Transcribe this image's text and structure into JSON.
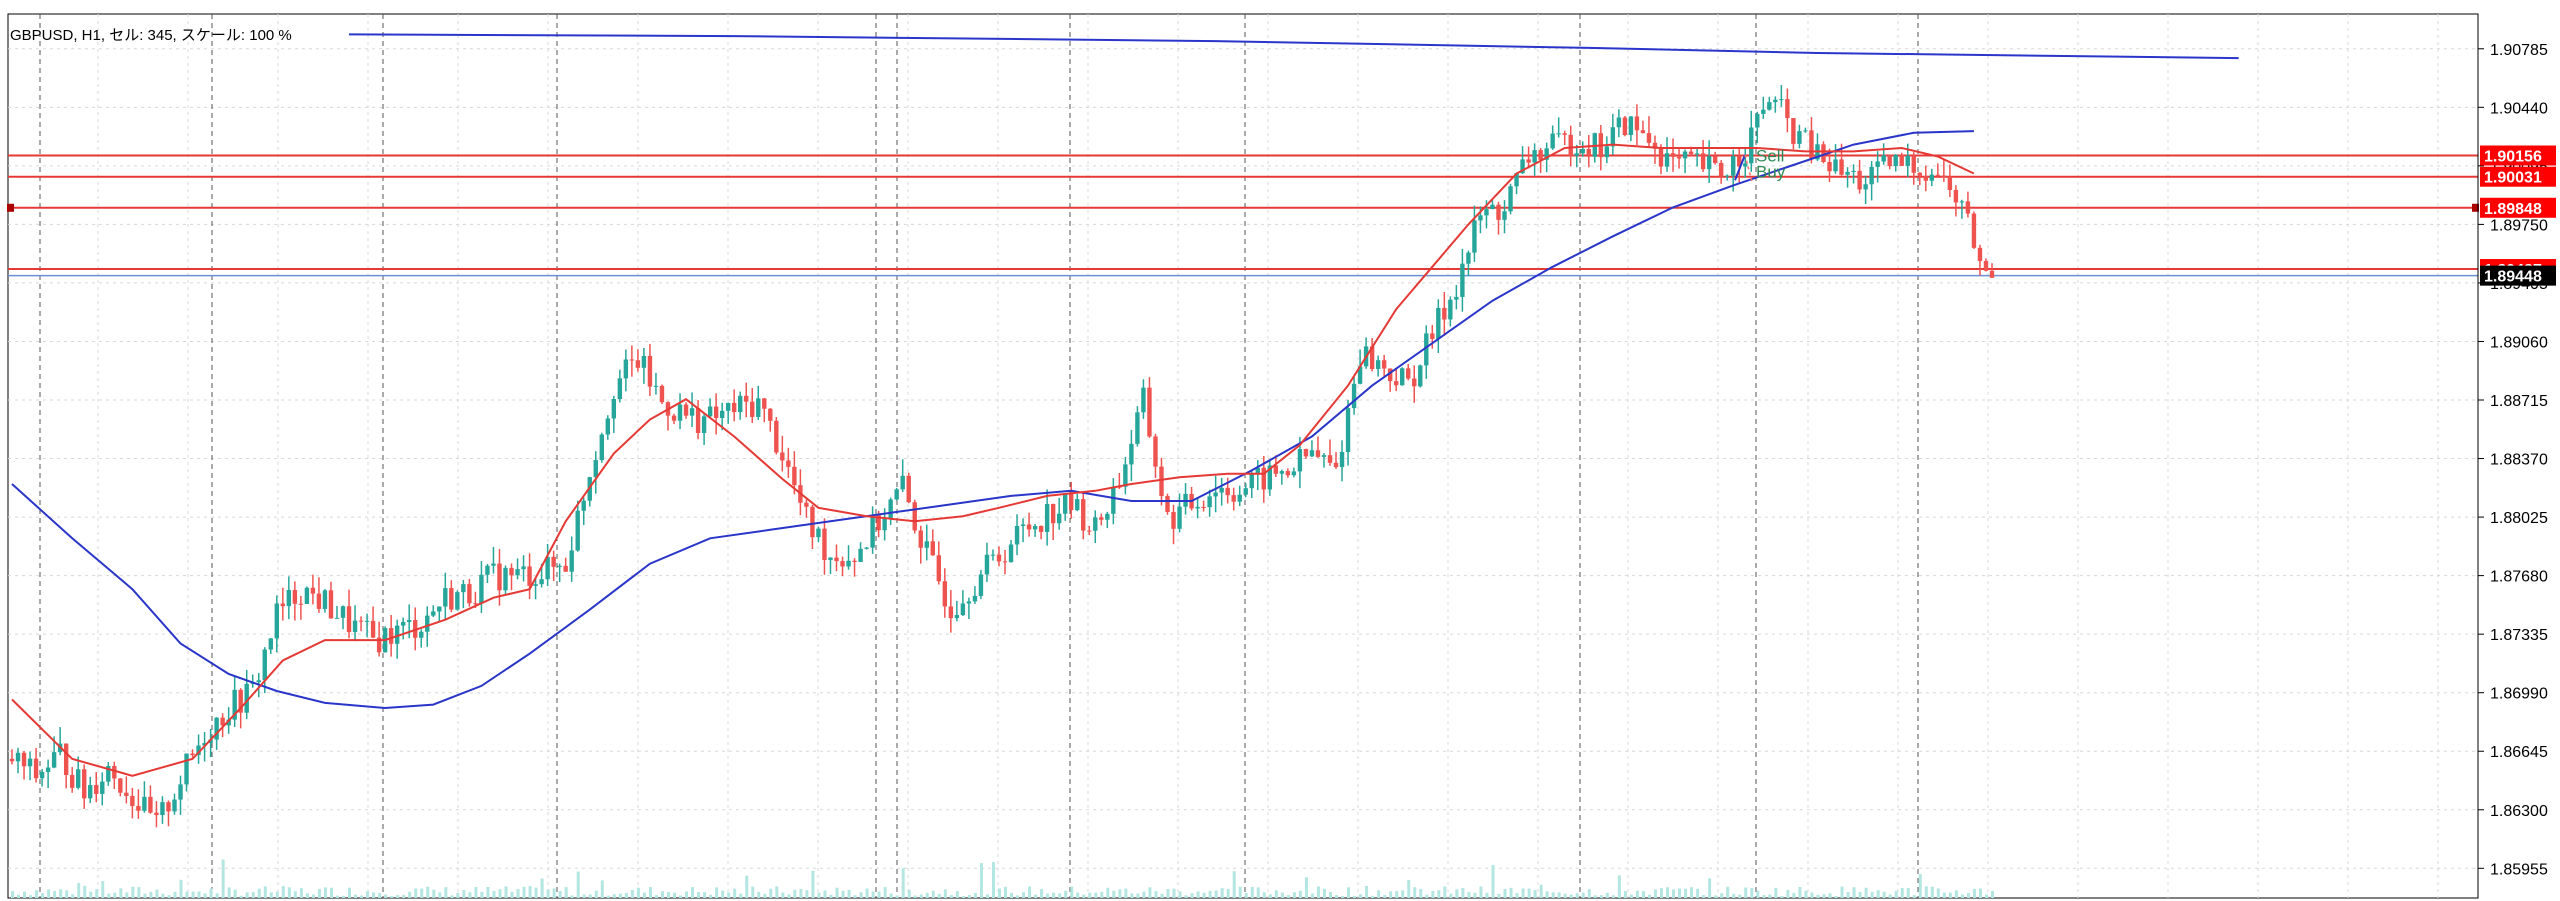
{
  "header": {
    "title": "GBPUSD, H1, セル: 345, スケール: 100 %"
  },
  "colors": {
    "background": "#ffffff",
    "bull_candle": "#26a69a",
    "bear_candle": "#ef5350",
    "ma_fast": "#e53935",
    "ma_slow": "#2a35c9",
    "level_line": "#e53935",
    "bid_line": "#6b8fd6",
    "grid": "#d8d8d8",
    "period_separator": "#555555",
    "volume": "#b3e6e1"
  },
  "chart_data": {
    "type": "candlestick",
    "symbol": "GBPUSD",
    "timeframe": "H1",
    "ylim": [
      1.8578,
      1.9099
    ],
    "y_ticks": [
      "1.90785",
      "1.90440",
      "1.90095",
      "1.89750",
      "1.89405",
      "1.89060",
      "1.88715",
      "1.88370",
      "1.88025",
      "1.87680",
      "1.87335",
      "1.86990",
      "1.86645",
      "1.86300",
      "1.85955"
    ],
    "close_anchors": [
      [
        0,
        1.866
      ],
      [
        4,
        1.865
      ],
      [
        8,
        1.8663
      ],
      [
        12,
        1.864
      ],
      [
        16,
        1.8655
      ],
      [
        20,
        1.8638
      ],
      [
        24,
        1.862
      ],
      [
        28,
        1.8648
      ],
      [
        32,
        1.8675
      ],
      [
        36,
        1.869
      ],
      [
        40,
        1.87
      ],
      [
        44,
        1.8745
      ],
      [
        48,
        1.876
      ],
      [
        52,
        1.8752
      ],
      [
        56,
        1.874
      ],
      [
        60,
        1.873
      ],
      [
        64,
        1.8735
      ],
      [
        68,
        1.874
      ],
      [
        72,
        1.8755
      ],
      [
        76,
        1.8758
      ],
      [
        80,
        1.8768
      ],
      [
        84,
        1.8768
      ],
      [
        88,
        1.877
      ],
      [
        92,
        1.8775
      ],
      [
        96,
        1.883
      ],
      [
        100,
        1.888
      ],
      [
        104,
        1.8895
      ],
      [
        108,
        1.887
      ],
      [
        112,
        1.8862
      ],
      [
        116,
        1.886
      ],
      [
        120,
        1.8866
      ],
      [
        124,
        1.887
      ],
      [
        128,
        1.884
      ],
      [
        132,
        1.88
      ],
      [
        136,
        1.878
      ],
      [
        140,
        1.878
      ],
      [
        144,
        1.88
      ],
      [
        148,
        1.882
      ],
      [
        152,
        1.878
      ],
      [
        156,
        1.875
      ],
      [
        160,
        1.8765
      ],
      [
        164,
        1.878
      ],
      [
        168,
        1.8795
      ],
      [
        172,
        1.8805
      ],
      [
        176,
        1.881
      ],
      [
        180,
        1.8795
      ],
      [
        184,
        1.8825
      ],
      [
        188,
        1.887
      ],
      [
        192,
        1.88
      ],
      [
        196,
        1.881
      ],
      [
        200,
        1.882
      ],
      [
        204,
        1.8818
      ],
      [
        208,
        1.8825
      ],
      [
        212,
        1.883
      ],
      [
        216,
        1.884
      ],
      [
        220,
        1.883
      ],
      [
        224,
        1.89
      ],
      [
        228,
        1.889
      ],
      [
        232,
        1.888
      ],
      [
        236,
        1.891
      ],
      [
        240,
        1.894
      ],
      [
        244,
        1.898
      ],
      [
        248,
        1.8985
      ],
      [
        252,
        1.9015
      ],
      [
        256,
        1.902
      ],
      [
        260,
        1.9025
      ],
      [
        264,
        1.902
      ],
      [
        268,
        1.9035
      ],
      [
        272,
        1.9025
      ],
      [
        276,
        1.901
      ],
      [
        280,
        1.901
      ],
      [
        284,
        1.9005
      ],
      [
        288,
        1.902
      ],
      [
        292,
        1.905
      ],
      [
        296,
        1.903
      ],
      [
        300,
        1.9015
      ],
      [
        304,
        1.9005
      ],
      [
        308,
        1.9
      ],
      [
        312,
        1.901
      ],
      [
        316,
        1.901
      ],
      [
        320,
        1.9005
      ],
      [
        324,
        1.8985
      ],
      [
        328,
        1.8944
      ]
    ],
    "ma_fast": [
      [
        0,
        1.8695
      ],
      [
        10,
        1.866
      ],
      [
        20,
        1.865
      ],
      [
        30,
        1.866
      ],
      [
        38,
        1.869
      ],
      [
        45,
        1.8718
      ],
      [
        52,
        1.873
      ],
      [
        62,
        1.873
      ],
      [
        72,
        1.8742
      ],
      [
        80,
        1.8755
      ],
      [
        86,
        1.876
      ],
      [
        92,
        1.88
      ],
      [
        100,
        1.884
      ],
      [
        106,
        1.886
      ],
      [
        112,
        1.8872
      ],
      [
        120,
        1.885
      ],
      [
        128,
        1.8825
      ],
      [
        134,
        1.8808
      ],
      [
        142,
        1.8803
      ],
      [
        150,
        1.88
      ],
      [
        158,
        1.8803
      ],
      [
        164,
        1.8808
      ],
      [
        172,
        1.8815
      ],
      [
        180,
        1.8818
      ],
      [
        186,
        1.8822
      ],
      [
        194,
        1.8826
      ],
      [
        202,
        1.8828
      ],
      [
        208,
        1.8828
      ],
      [
        214,
        1.8845
      ],
      [
        222,
        1.888
      ],
      [
        230,
        1.8925
      ],
      [
        236,
        1.895
      ],
      [
        242,
        1.8975
      ],
      [
        250,
        1.9005
      ],
      [
        258,
        1.902
      ],
      [
        266,
        1.9022
      ],
      [
        274,
        1.902
      ],
      [
        282,
        1.902
      ],
      [
        290,
        1.902
      ],
      [
        298,
        1.9018
      ],
      [
        306,
        1.9018
      ],
      [
        314,
        1.902
      ],
      [
        320,
        1.9015
      ],
      [
        326,
        1.9005
      ]
    ],
    "ma_slow": [
      [
        0,
        1.8822
      ],
      [
        10,
        1.879
      ],
      [
        20,
        1.876
      ],
      [
        28,
        1.8728
      ],
      [
        36,
        1.871
      ],
      [
        44,
        1.87
      ],
      [
        52,
        1.8693
      ],
      [
        62,
        1.869
      ],
      [
        70,
        1.8692
      ],
      [
        78,
        1.8703
      ],
      [
        86,
        1.8722
      ],
      [
        96,
        1.8748
      ],
      [
        106,
        1.8775
      ],
      [
        116,
        1.879
      ],
      [
        126,
        1.8795
      ],
      [
        136,
        1.88
      ],
      [
        146,
        1.8805
      ],
      [
        156,
        1.881
      ],
      [
        166,
        1.8815
      ],
      [
        176,
        1.8818
      ],
      [
        186,
        1.8812
      ],
      [
        196,
        1.8812
      ],
      [
        206,
        1.883
      ],
      [
        216,
        1.885
      ],
      [
        226,
        1.888
      ],
      [
        236,
        1.8905
      ],
      [
        246,
        1.893
      ],
      [
        256,
        1.895
      ],
      [
        266,
        1.8968
      ],
      [
        276,
        1.8985
      ],
      [
        286,
        1.8998
      ],
      [
        296,
        1.901
      ],
      [
        306,
        1.9022
      ],
      [
        316,
        1.9029
      ],
      [
        326,
        1.903
      ]
    ],
    "ma_long": [
      [
        56,
        1.9087
      ],
      [
        120,
        1.9086
      ],
      [
        200,
        1.9083
      ],
      [
        262,
        1.9079
      ],
      [
        300,
        1.9076
      ],
      [
        370,
        1.9073
      ]
    ],
    "horizontal_levels": [
      {
        "price": 1.90156,
        "label": "1.90156"
      },
      {
        "price": 1.90031,
        "label": "1.90031"
      },
      {
        "price": 1.89848,
        "label": "1.89848"
      },
      {
        "price": 1.89487,
        "label": "1.89487"
      }
    ],
    "bid_line": {
      "price": 1.89448,
      "label": "1.89448"
    },
    "trade_markers": [
      {
        "label": "Sell"
      },
      {
        "label": "Buy"
      }
    ]
  }
}
